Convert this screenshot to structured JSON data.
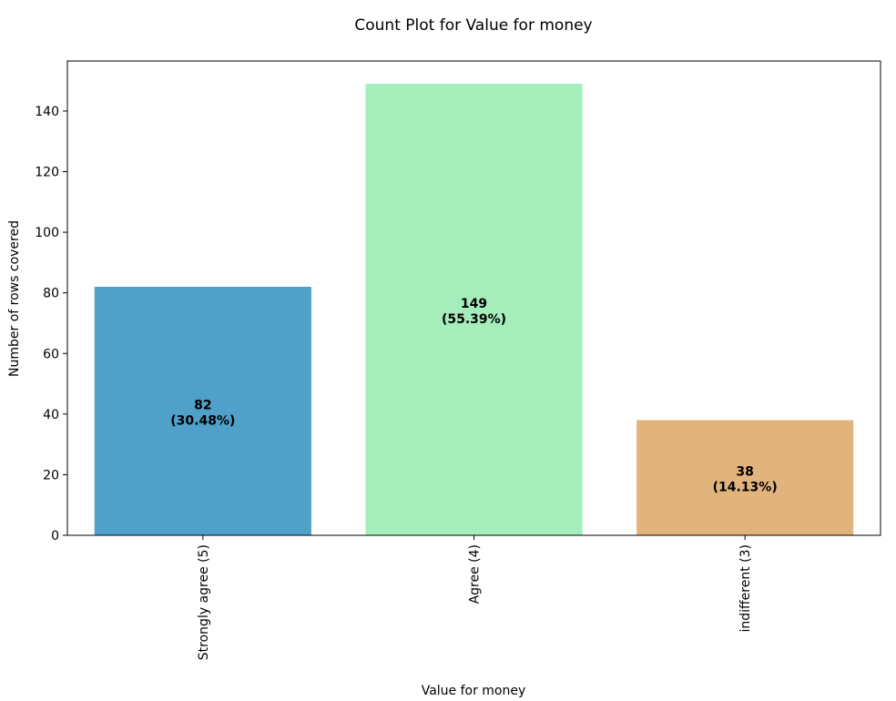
{
  "chart_data": {
    "type": "bar",
    "title": "Count Plot for Value for money",
    "xlabel": "Value for money",
    "ylabel": "Number of rows covered",
    "categories": [
      "Strongly agree (5)",
      "Agree (4)",
      "indifferent (3)"
    ],
    "values": [
      82,
      149,
      38
    ],
    "percent_labels": [
      "(30.48%)",
      "(55.39%)",
      "(14.13%)"
    ],
    "colors": [
      "#4fa1c9",
      "#a6edbc",
      "#e2b47d"
    ],
    "ylim": [
      0,
      156.5
    ],
    "yticks": [
      0,
      20,
      40,
      60,
      80,
      100,
      120,
      140
    ],
    "grid": false,
    "legend": "none"
  }
}
